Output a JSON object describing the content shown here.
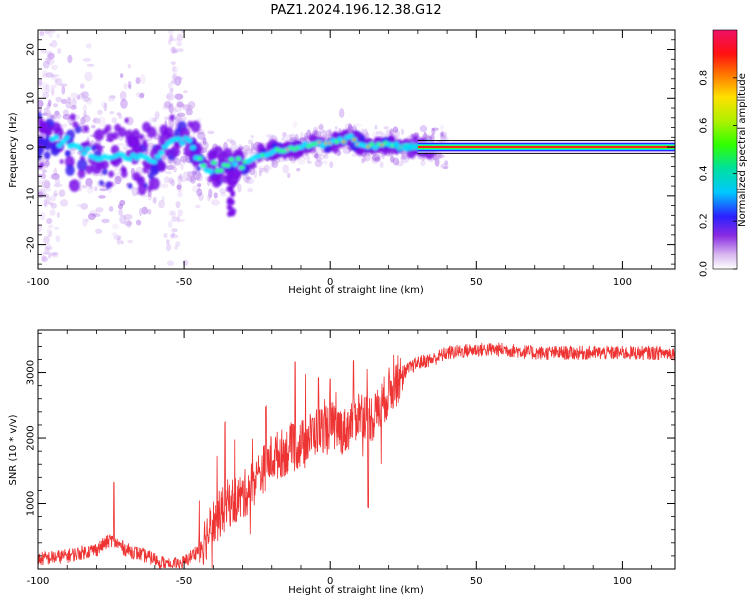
{
  "title": "PAZ1.2024.196.12.38.G12",
  "chart_data": [
    {
      "type": "heatmap",
      "xlabel": "Height of straight line (km)",
      "ylabel": "Frequency (Hz)",
      "xlim": [
        -100,
        118
      ],
      "ylim": [
        -25,
        24
      ],
      "xticks": [
        -100,
        -50,
        0,
        50,
        100
      ],
      "xtick_labels": [
        "-100",
        "-50",
        "0",
        "50",
        "100"
      ],
      "yticks": [
        -20,
        -10,
        0,
        10,
        20
      ],
      "ytick_labels": [
        "-20",
        "-10",
        "0",
        "10",
        "20"
      ],
      "colorbar": {
        "label": "Normalized spectral amplitude",
        "range": [
          0,
          1
        ],
        "ticks": [
          0,
          0.2,
          0.4,
          0.6,
          0.8
        ],
        "tick_labels": [
          "0.0",
          "0.2",
          "0.4",
          "0.6",
          "0.8"
        ]
      },
      "ridge": [
        {
          "x": -100,
          "y": 2
        },
        {
          "x": -90,
          "y": 1
        },
        {
          "x": -80,
          "y": -2
        },
        {
          "x": -70,
          "y": -2
        },
        {
          "x": -60,
          "y": -3
        },
        {
          "x": -55,
          "y": 1.5
        },
        {
          "x": -48,
          "y": 1
        },
        {
          "x": -44,
          "y": -4
        },
        {
          "x": -38,
          "y": -4
        },
        {
          "x": -30,
          "y": -3
        },
        {
          "x": -20,
          "y": -1
        },
        {
          "x": -10,
          "y": 0
        },
        {
          "x": 0,
          "y": 1
        },
        {
          "x": 7,
          "y": 2
        },
        {
          "x": 12,
          "y": 0
        },
        {
          "x": 20,
          "y": 0.5
        },
        {
          "x": 30,
          "y": 0
        },
        {
          "x": 118,
          "y": 0
        }
      ],
      "grid": false
    },
    {
      "type": "line",
      "xlabel": "Height of straight line (km)",
      "ylabel": "SNR (10 * v/v)",
      "xlim": [
        -100,
        118
      ],
      "ylim": [
        0,
        3650
      ],
      "xticks": [
        -100,
        -50,
        0,
        50,
        100
      ],
      "xtick_labels": [
        "-100",
        "-50",
        "0",
        "50",
        "100"
      ],
      "yticks": [
        1000,
        2000,
        3000
      ],
      "ytick_labels": [
        "1000",
        "2000",
        "3000"
      ],
      "color": "#ee3333",
      "x": [
        -100,
        -90,
        -80,
        -75,
        -70,
        -60,
        -55,
        -50,
        -45,
        -40,
        -35,
        -30,
        -25,
        -20,
        -15,
        -10,
        -5,
        0,
        5,
        10,
        15,
        20,
        25,
        30,
        35,
        40,
        50,
        60,
        70,
        80,
        90,
        100,
        110,
        118
      ],
      "y": [
        150,
        200,
        300,
        450,
        300,
        150,
        50,
        100,
        300,
        700,
        1000,
        1100,
        1400,
        1700,
        1800,
        1900,
        2100,
        2200,
        2100,
        2400,
        2300,
        2700,
        3000,
        3150,
        3200,
        3300,
        3350,
        3350,
        3300,
        3300,
        3300,
        3300,
        3300,
        3300
      ],
      "grid": false
    }
  ]
}
